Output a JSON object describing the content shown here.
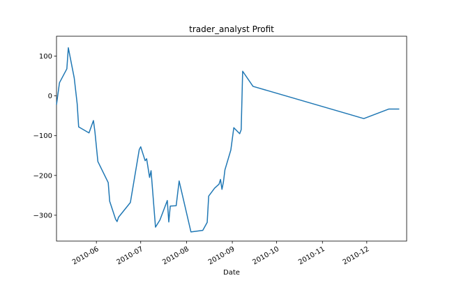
{
  "chart_data": {
    "type": "line",
    "title": "trader_analyst Profit",
    "xlabel": "Date",
    "ylabel": "",
    "grid": false,
    "legend": "none",
    "x_axis_type": "date",
    "xlim": [
      "2010-05-05",
      "2010-12-28"
    ],
    "ylim": [
      -365,
      150
    ],
    "y_ticks": [
      100,
      0,
      -100,
      -200,
      -300
    ],
    "x_ticks": [
      {
        "date": "2010-06-01",
        "label": "2010-06"
      },
      {
        "date": "2010-07-01",
        "label": "2010-07"
      },
      {
        "date": "2010-08-01",
        "label": "2010-08"
      },
      {
        "date": "2010-09-01",
        "label": "2010-09"
      },
      {
        "date": "2010-10-01",
        "label": "2010-10"
      },
      {
        "date": "2010-11-01",
        "label": "2010-11"
      },
      {
        "date": "2010-12-01",
        "label": "2010-12"
      }
    ],
    "series": [
      {
        "color": "#1f77b4",
        "points": [
          {
            "x": "2010-05-05",
            "y": -22
          },
          {
            "x": "2010-05-07",
            "y": 33
          },
          {
            "x": "2010-05-12",
            "y": 68
          },
          {
            "x": "2010-05-13",
            "y": 121
          },
          {
            "x": "2010-05-17",
            "y": 45
          },
          {
            "x": "2010-05-19",
            "y": -20
          },
          {
            "x": "2010-05-20",
            "y": -78
          },
          {
            "x": "2010-05-27",
            "y": -93
          },
          {
            "x": "2010-05-30",
            "y": -62
          },
          {
            "x": "2010-05-31",
            "y": -90
          },
          {
            "x": "2010-06-02",
            "y": -165
          },
          {
            "x": "2010-06-09",
            "y": -218
          },
          {
            "x": "2010-06-10",
            "y": -265
          },
          {
            "x": "2010-06-14",
            "y": -310
          },
          {
            "x": "2010-06-15",
            "y": -316
          },
          {
            "x": "2010-06-16",
            "y": -305
          },
          {
            "x": "2010-06-24",
            "y": -268
          },
          {
            "x": "2010-06-30",
            "y": -135
          },
          {
            "x": "2010-07-01",
            "y": -128
          },
          {
            "x": "2010-07-04",
            "y": -163
          },
          {
            "x": "2010-07-05",
            "y": -158
          },
          {
            "x": "2010-07-07",
            "y": -205
          },
          {
            "x": "2010-07-08",
            "y": -188
          },
          {
            "x": "2010-07-11",
            "y": -330
          },
          {
            "x": "2010-07-14",
            "y": -312
          },
          {
            "x": "2010-07-19",
            "y": -263
          },
          {
            "x": "2010-07-20",
            "y": -317
          },
          {
            "x": "2010-07-21",
            "y": -277
          },
          {
            "x": "2010-07-25",
            "y": -276
          },
          {
            "x": "2010-07-27",
            "y": -214
          },
          {
            "x": "2010-08-04",
            "y": -342
          },
          {
            "x": "2010-08-12",
            "y": -338
          },
          {
            "x": "2010-08-15",
            "y": -318
          },
          {
            "x": "2010-08-16",
            "y": -252
          },
          {
            "x": "2010-08-20",
            "y": -232
          },
          {
            "x": "2010-08-23",
            "y": -222
          },
          {
            "x": "2010-08-24",
            "y": -210
          },
          {
            "x": "2010-08-25",
            "y": -235
          },
          {
            "x": "2010-08-26",
            "y": -216
          },
          {
            "x": "2010-08-27",
            "y": -186
          },
          {
            "x": "2010-08-31",
            "y": -136
          },
          {
            "x": "2010-09-02",
            "y": -80
          },
          {
            "x": "2010-09-06",
            "y": -95
          },
          {
            "x": "2010-09-07",
            "y": -85
          },
          {
            "x": "2010-09-08",
            "y": 62
          },
          {
            "x": "2010-09-15",
            "y": 24
          },
          {
            "x": "2010-11-29",
            "y": -57
          },
          {
            "x": "2010-12-16",
            "y": -33
          },
          {
            "x": "2010-12-23",
            "y": -33
          }
        ]
      }
    ]
  }
}
